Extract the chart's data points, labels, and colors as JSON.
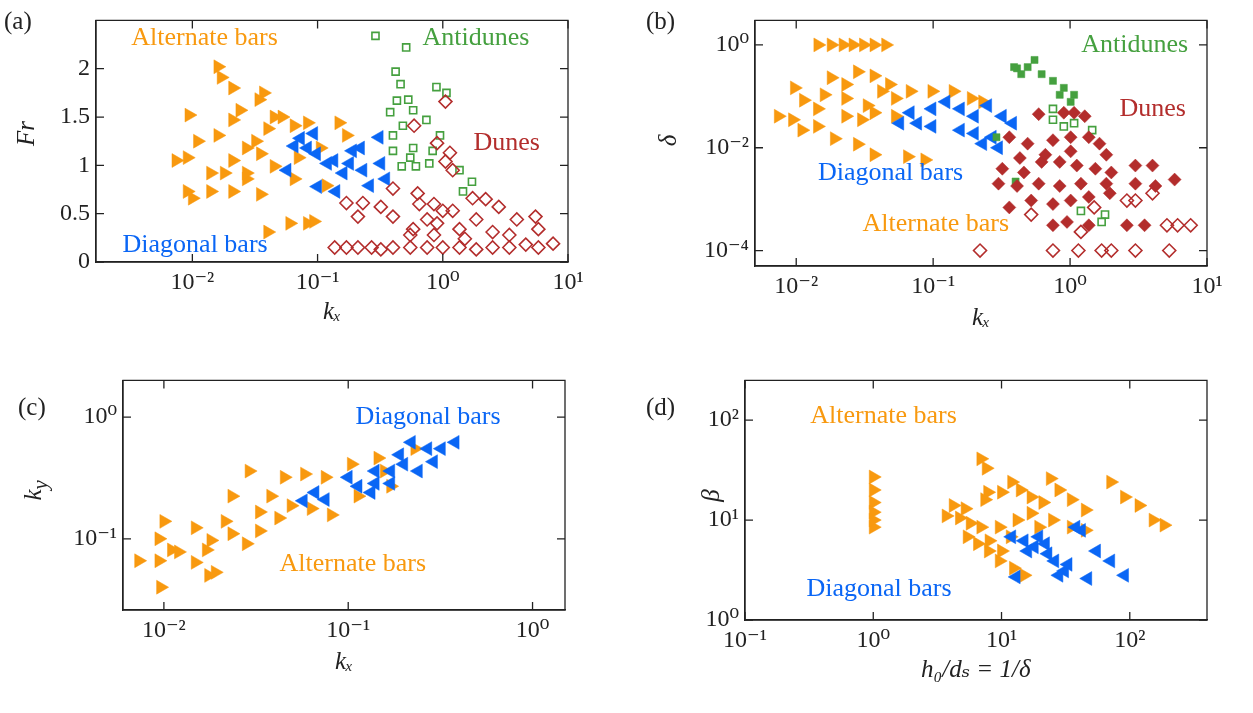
{
  "chart_data": [
    {
      "type": "scatter",
      "title": "(a)",
      "xlabel": "kₓ",
      "ylabel": "Fr",
      "log": "x",
      "xlim": [
        0.0017,
        10
      ],
      "ylim": [
        0,
        2.5
      ],
      "xticks": [
        {
          "value": 0.01,
          "label": "10⁻²"
        },
        {
          "value": 0.1,
          "label": "10⁻¹"
        },
        {
          "value": 1,
          "label": "10⁰"
        },
        {
          "value": 10,
          "label": "10¹"
        }
      ],
      "yticks": [
        0,
        0.5,
        1,
        1.5,
        2
      ],
      "series": [
        {
          "name": "Alternate bars",
          "color": "#f8990f",
          "marker": "triangle-right",
          "x": [
            0.016,
            0.017,
            0.021,
            0.037,
            0.034,
            0.0094,
            0.024,
            0.045,
            0.052,
            0.083,
            0.148,
            0.17,
            0.011,
            0.016,
            0.0074,
            0.0091,
            0.027,
            0.035,
            0.021,
            0.045,
            0.014,
            0.0091,
            0.01,
            0.014,
            0.021,
            0.035,
            0.027,
            0.065,
            0.117,
            0.07,
            0.105,
            0.04,
            0.06,
            0.083,
            0.093,
            0.032,
            0.021,
            0.027,
            0.018,
            0.04,
            0.065
          ],
          "values": [
            2.02,
            1.91,
            1.8,
            1.75,
            1.68,
            1.52,
            1.57,
            1.5,
            1.5,
            1.44,
            1.44,
            1.31,
            1.25,
            1.31,
            1.05,
            1.08,
            1.18,
            1.12,
            1.05,
            0.99,
            0.92,
            0.73,
            0.66,
            0.73,
            0.73,
            0.7,
            0.86,
            0.86,
            0.79,
            1.08,
            1.18,
            0.31,
            0.4,
            0.4,
            0.42,
            1.25,
            1.47,
            0.92,
            0.92,
            1.38,
            1.41
          ]
        },
        {
          "name": "Diagonal bars",
          "color": "#0a66f5",
          "marker": "triangle-left",
          "x": [
            0.065,
            0.093,
            0.073,
            0.057,
            0.1,
            0.14,
            0.18,
            0.22,
            0.31,
            0.35,
            0.26,
            0.135,
            0.16,
            0.098,
            0.23,
            0.19,
            0.32,
            0.12,
            0.083
          ],
          "values": [
            1.2,
            1.33,
            1.28,
            0.95,
            0.78,
            0.73,
            1.02,
            1.18,
            1.29,
            0.86,
            0.79,
            1.05,
            0.92,
            1.12,
            0.95,
            1.15,
            1.02,
            1.02,
            1.18
          ]
        },
        {
          "name": "Antidunes",
          "color": "#45a03f",
          "marker": "square",
          "x": [
            0.29,
            0.51,
            0.42,
            0.46,
            0.89,
            1.07,
            0.53,
            0.38,
            0.58,
            0.4,
            0.48,
            0.74,
            0.95,
            0.4,
            0.55,
            0.61,
            0.47,
            0.78,
            1.36,
            1.71,
            1.45,
            0.43,
            0.58,
            0.83
          ],
          "values": [
            2.34,
            2.22,
            1.97,
            1.84,
            1.81,
            1.75,
            1.68,
            1.55,
            1.57,
            1.31,
            1.41,
            1.47,
            1.31,
            1.15,
            1.08,
            0.99,
            0.99,
            1.02,
            0.95,
            0.83,
            0.73,
            1.67,
            1.18,
            1.15
          ]
        },
        {
          "name": "Dunes",
          "color": "#b32d2c",
          "marker": "diamond",
          "x": [
            1.05,
            0.59,
            0.9,
            1.14,
            1.05,
            1.2,
            0.17,
            0.23,
            0.21,
            0.4,
            0.63,
            0.32,
            1.73,
            2.2,
            2.8,
            3.9,
            5.5,
            5.8,
            7.6,
            5.8,
            4.6,
            0.137,
            0.17,
            0.21,
            0.27,
            0.32,
            0.4,
            0.55,
            0.75,
            1,
            1.36,
            1.85,
            2.5,
            3.4,
            0.75,
            1,
            1.36,
            0.55,
            0.85,
            1.2,
            1.85,
            0.65,
            0.4,
            2.5,
            3.4,
            0.9,
            0.58,
            1.5,
            0.85
          ],
          "values": [
            1.66,
            1.41,
            1.23,
            1.13,
            1.04,
            0.95,
            0.61,
            0.61,
            0.47,
            0.76,
            0.71,
            0.57,
            0.66,
            0.65,
            0.57,
            0.44,
            0.47,
            0.34,
            0.19,
            0.15,
            0.18,
            0.15,
            0.15,
            0.15,
            0.15,
            0.13,
            0.15,
            0.15,
            0.15,
            0.15,
            0.15,
            0.13,
            0.15,
            0.15,
            0.44,
            0.53,
            0.34,
            0.28,
            0.28,
            0.53,
            0.44,
            0.6,
            0.47,
            0.31,
            0.28,
            0.4,
            0.34,
            0.24,
            0.6
          ]
        }
      ]
    },
    {
      "type": "scatter",
      "title": "(b)",
      "xlabel": "kₓ",
      "ylabel": "δ",
      "log": "xy",
      "xlim": [
        0.005,
        10
      ],
      "ylim": [
        5e-05,
        3
      ],
      "xticks": [
        {
          "value": 0.01,
          "label": "10⁻²"
        },
        {
          "value": 0.1,
          "label": "10⁻¹"
        },
        {
          "value": 1,
          "label": "10⁰"
        },
        {
          "value": 10,
          "label": "10¹"
        }
      ],
      "yticks": [
        {
          "value": 0.0001,
          "label": "10⁻⁴"
        },
        {
          "value": 0.01,
          "label": "10⁻²"
        },
        {
          "value": 1,
          "label": "10⁰"
        }
      ],
      "series": [
        {
          "name": "Alternate bars",
          "color": "#f8990f",
          "marker": "triangle-right",
          "x": [
            0.0144,
            0.018,
            0.022,
            0.026,
            0.031,
            0.037,
            0.045,
            0.018,
            0.028,
            0.037,
            0.0097,
            0.0113,
            0.0074,
            0.0094,
            0.011,
            0.0143,
            0.019,
            0.028,
            0.037,
            0.065,
            0.087,
            0.016,
            0.023,
            0.033,
            0.042,
            0.053,
            0.068,
            0.098,
            0.14,
            0.19,
            0.23,
            0.023,
            0.037,
            0.053,
            0.03,
            0.0143,
            0.023,
            0.048
          ],
          "values": [
            1,
            1,
            1,
            1,
            1,
            1,
            1,
            0.23,
            0.3,
            0.25,
            0.146,
            0.084,
            0.041,
            0.035,
            0.022,
            0.026,
            0.015,
            0.0117,
            0.0073,
            0.0067,
            0.0058,
            0.107,
            0.091,
            0.066,
            0.125,
            0.091,
            0.125,
            0.125,
            0.125,
            0.091,
            0.078,
            0.041,
            0.048,
            0.041,
            0.035,
            0.057,
            0.17,
            0.17
          ]
        },
        {
          "name": "Diagonal bars",
          "color": "#0a66f5",
          "marker": "triangle-left",
          "x": [
            0.057,
            0.068,
            0.098,
            0.124,
            0.158,
            0.2,
            0.25,
            0.32,
            0.38,
            0.27,
            0.2,
            0.158,
            0.098,
            0.077,
            0.3,
            0.23
          ],
          "values": [
            0.03,
            0.048,
            0.057,
            0.078,
            0.057,
            0.041,
            0.066,
            0.041,
            0.03,
            0.016,
            0.019,
            0.022,
            0.026,
            0.03,
            0.01,
            0.012
          ]
        },
        {
          "name": "Antidunes",
          "color": "#45a03f",
          "marker": "square",
          "x": [
            0.41,
            0.55,
            0.49,
            0.62,
            0.75,
            0.9,
            1.07,
            1.01,
            0.44,
            0.39,
            0.84,
            0.29,
            0.4
          ],
          "values": [
            0.35,
            0.51,
            0.37,
            0.27,
            0.2,
            0.146,
            0.107,
            0.078,
            0.27,
            0.37,
            0.107,
            0.016,
            0.0022
          ]
        },
        {
          "color": "#45a03f",
          "marker": "square",
          "x": [
            0.75,
            0.75,
            0.9,
            1.07,
            1.45,
            1.8,
            1.7,
            1.2
          ],
          "values": [
            0.057,
            0.035,
            0.026,
            0.03,
            0.022,
            0.0005,
            0.00036,
            0.00059
          ]
        },
        {
          "name": "Dunes",
          "color": "#b32d2c",
          "marker": "diamond",
          "x": [
            0.59,
            0.9,
            1.07,
            1.28,
            0.36,
            0.49,
            0.75,
            1.01,
            1.37,
            1.64,
            1.84,
            0.32,
            0.46,
            0.62,
            0.84,
            1.12,
            1.53,
            2,
            3,
            4,
            0.3,
            0.41,
            0.59,
            0.84,
            1.2,
            1.84,
            3,
            4.2,
            5.8,
            0.36,
            0.52,
            0.75,
            1.01,
            1.37,
            1.95,
            0.75,
            0.95,
            1.37,
            2.6,
            3.5,
            0.66,
            1.01,
            0.43
          ],
          "values": [
            0.045,
            0.048,
            0.048,
            0.041,
            0.016,
            0.012,
            0.014,
            0.016,
            0.016,
            0.012,
            0.0073,
            0.0039,
            0.0033,
            0.0053,
            0.0053,
            0.0045,
            0.0039,
            0.0033,
            0.0045,
            0.0045,
            0.002,
            0.0018,
            0.002,
            0.0018,
            0.002,
            0.002,
            0.002,
            0.0018,
            0.0024,
            0.00069,
            0.00094,
            0.0008,
            0.00094,
            0.0011,
            0.0013,
            0.00031,
            0.00036,
            0.00031,
            0.00031,
            0.00031,
            0.0073,
            0.0085,
            0.0063
          ]
        },
        {
          "color": "#b32d2c",
          "marker": "diamond",
          "x": [
            0.22,
            0.75,
            1.15,
            1.7,
            2,
            3,
            5.3,
            5.1,
            6.1,
            7.6,
            4,
            2.6,
            3,
            0.52,
            1.2,
            1.5
          ],
          "values": [
            0.0001,
            0.0001,
            0.0001,
            0.0001,
            0.0001,
            0.0001,
            0.0001,
            0.00031,
            0.00031,
            0.00031,
            0.0013,
            0.00094,
            0.00094,
            0.0005,
            0.00023,
            0.00069
          ]
        }
      ]
    },
    {
      "type": "scatter",
      "title": "(c)",
      "xlabel": "kₓ",
      "ylabel": "k$_{y}$",
      "log": "xy",
      "xlim": [
        0.006,
        1.5
      ],
      "ylim": [
        0.026,
        2
      ],
      "xticks": [
        {
          "value": 0.01,
          "label": "10⁻²"
        },
        {
          "value": 0.1,
          "label": "10⁻¹"
        },
        {
          "value": 1,
          "label": "10⁰"
        }
      ],
      "yticks": [
        {
          "value": 0.1,
          "label": "10⁻¹"
        },
        {
          "value": 1,
          "label": "10⁰"
        }
      ],
      "series": [
        {
          "name": "Alternate bars",
          "color": "#f8990f",
          "marker": "triangle-right",
          "x": [
            0.0073,
            0.0094,
            0.0096,
            0.0094,
            0.01,
            0.011,
            0.012,
            0.0148,
            0.0148,
            0.0175,
            0.019,
            0.018,
            0.0215,
            0.0234,
            0.029,
            0.028,
            0.033,
            0.038,
            0.045,
            0.058,
            0.049,
            0.063,
            0.075,
            0.081,
            0.104,
            0.145,
            0.17,
            0.113,
            0.23,
            0.157,
            0.017,
            0.0234,
            0.033,
            0.042
          ],
          "values": [
            0.066,
            0.066,
            0.04,
            0.1,
            0.139,
            0.081,
            0.078,
            0.064,
            0.123,
            0.05,
            0.053,
            0.097,
            0.139,
            0.224,
            0.36,
            0.091,
            0.166,
            0.224,
            0.32,
            0.34,
            0.187,
            0.177,
            0.32,
            0.157,
            0.41,
            0.46,
            0.27,
            0.224,
            0.55,
            0.36,
            0.081,
            0.11,
            0.116,
            0.148
          ]
        },
        {
          "name": "Diagonal bars",
          "color": "#0a66f5",
          "marker": "triangle-left",
          "x": [
            0.057,
            0.066,
            0.075,
            0.1,
            0.113,
            0.14,
            0.14,
            0.17,
            0.2,
            0.24,
            0.22,
            0.27,
            0.32,
            0.38,
            0.29,
            0.17,
            0.19,
            0.133
          ],
          "values": [
            0.205,
            0.24,
            0.21,
            0.32,
            0.27,
            0.285,
            0.36,
            0.36,
            0.41,
            0.36,
            0.62,
            0.55,
            0.55,
            0.62,
            0.43,
            0.285,
            0.49,
            0.24
          ]
        }
      ]
    },
    {
      "type": "scatter",
      "title": "(d)",
      "xlabel": "h₀/dₛ = 1/δ",
      "ylabel": "β",
      "log": "xy",
      "xlim": [
        0.1,
        400
      ],
      "ylim": [
        1,
        250
      ],
      "xticks": [
        {
          "value": 0.1,
          "label": "10⁻¹"
        },
        {
          "value": 1,
          "label": "10⁰"
        },
        {
          "value": 10,
          "label": "10¹"
        },
        {
          "value": 100,
          "label": "10²"
        }
      ],
      "yticks": [
        {
          "value": 1,
          "label": "10⁰"
        },
        {
          "value": 10,
          "label": "10¹"
        },
        {
          "value": 100,
          "label": "10²"
        }
      ],
      "series": [
        {
          "name": "Alternate bars",
          "color": "#f8990f",
          "marker": "triangle-right",
          "x": [
            1,
            1,
            1,
            1,
            1,
            1,
            6.9,
            7.6,
            7.8,
            7.4,
            3.7,
            4.2,
            5.2,
            4.7,
            5.7,
            6.9,
            5.4,
            6.5,
            7.9,
            9.6,
            12.4,
            15,
            10,
            12,
            14,
            17,
            21,
            24,
            28,
            35,
            45,
            71,
            91,
            118,
            152,
            185,
            9.6,
            11.7,
            13.2,
            17,
            19.5,
            25,
            35,
            45,
            8,
            10
          ],
          "values": [
            27,
            20,
            15,
            12,
            8.5,
            10,
            41,
            33,
            19,
            16,
            11,
            14,
            13,
            10.5,
            9.3,
            8.5,
            6.8,
            5.8,
            4.9,
            3.9,
            3.3,
            2.8,
            19,
            24,
            20,
            17,
            15,
            26,
            20,
            16,
            12.6,
            24,
            17,
            14,
            10,
            8.9,
            8.5,
            6.8,
            10,
            11.7,
            8.5,
            10,
            8.5,
            7.9,
            6.2,
            4.9
          ]
        },
        {
          "name": "Diagonal bars",
          "color": "#0a66f5",
          "marker": "triangle-left",
          "x": [
            12,
            15,
            19.5,
            22,
            18,
            23,
            26,
            31,
            33,
            42,
            38,
            55,
            71,
            91,
            47,
            13,
            16,
            28
          ],
          "values": [
            6.8,
            6.2,
            6.8,
            5.8,
            5.4,
            4.6,
            3.9,
            3.1,
            3.6,
            7.9,
            8.5,
            4.9,
            3.9,
            2.8,
            2.6,
            2.7,
            4.9,
            2.8
          ]
        }
      ]
    }
  ]
}
